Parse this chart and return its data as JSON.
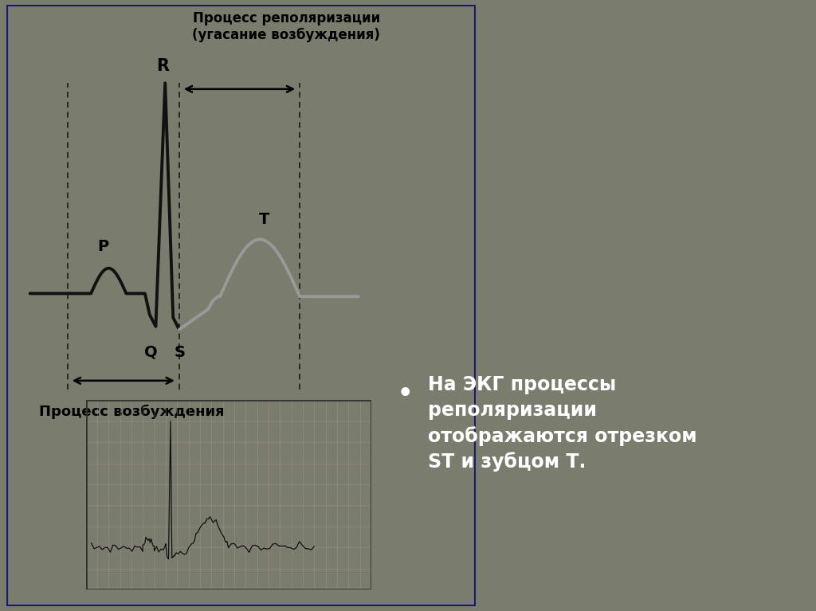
{
  "bg_color": "#7a7d6e",
  "left_panel_bg": "#ddd9d0",
  "left_panel_border": "#1a1a6e",
  "title_repol": "Процесс реполяризации\n(угасание возбуждения)",
  "title_vozb": "Процесс возбуждения",
  "bullet_text_line1": "На ЭКГ процессы",
  "bullet_text_line2": "реполяризации",
  "bullet_text_line3": "отображаются отрезком",
  "bullet_text_line4": "ST и зубцом Т.",
  "bullet_box_color": "#6b7063",
  "bullet_text_color": "#ffffff",
  "label_color": "#000000",
  "dashed_color": "#222222",
  "arrow_color": "#000000",
  "ecg_black_color": "#111111",
  "ecg_gray_color": "#999999",
  "small_box_bg": "#c8c0b0",
  "small_box_border": "#333333",
  "grid_color": "#b09090"
}
